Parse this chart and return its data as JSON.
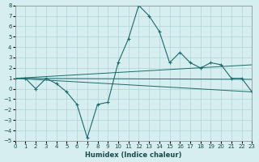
{
  "xlabel": "Humidex (Indice chaleur)",
  "ylabel": "",
  "bg_color": "#d6eef0",
  "grid_color": "#b0d4d8",
  "line_color": "#1a6b6b",
  "xlim": [
    0,
    23
  ],
  "ylim": [
    -5,
    8
  ],
  "xticks": [
    0,
    1,
    2,
    3,
    4,
    5,
    6,
    7,
    8,
    9,
    10,
    11,
    12,
    13,
    14,
    15,
    16,
    17,
    18,
    19,
    20,
    21,
    22,
    23
  ],
  "yticks": [
    -5,
    -4,
    -3,
    -2,
    -1,
    0,
    1,
    2,
    3,
    4,
    5,
    6,
    7,
    8
  ],
  "series1_x": [
    0,
    1,
    2,
    3,
    4,
    5,
    6,
    7,
    8,
    9,
    10,
    11,
    12,
    13,
    14,
    15,
    16,
    17,
    18,
    19,
    20,
    21,
    22,
    23
  ],
  "series1_y": [
    1,
    1,
    0,
    1,
    0.5,
    -0.3,
    -1.5,
    -4.7,
    -1.5,
    -1.3,
    2.5,
    4.8,
    8,
    7,
    5.5,
    2.5,
    3.5,
    2.5,
    2.0,
    2.5,
    2.3,
    1,
    1,
    -0.3
  ],
  "series2_x": [
    0,
    23
  ],
  "series2_y": [
    1,
    -0.3
  ],
  "series3_x": [
    0,
    23
  ],
  "series3_y": [
    1,
    2.3
  ],
  "series4_x": [
    0,
    23
  ],
  "series4_y": [
    1,
    0.9
  ]
}
